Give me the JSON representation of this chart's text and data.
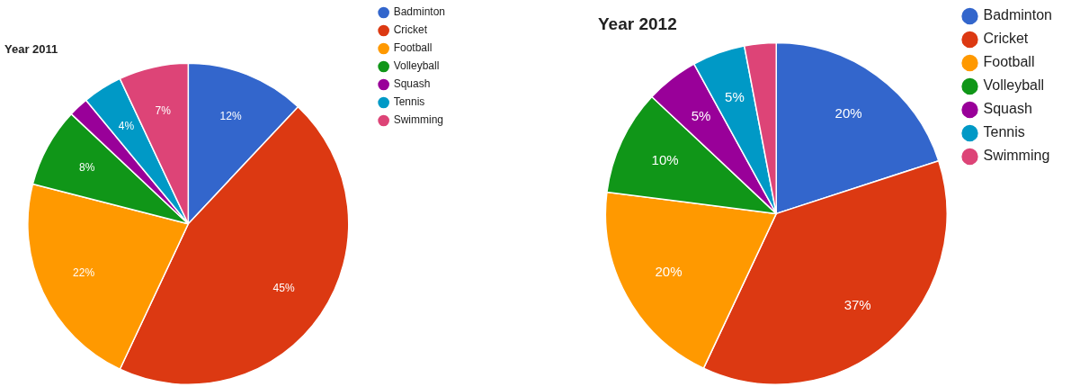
{
  "chart_data": [
    {
      "type": "pie",
      "title": "Year 2011",
      "categories": [
        "Badminton",
        "Cricket",
        "Football",
        "Volleyball",
        "Squash",
        "Tennis",
        "Swimming"
      ],
      "values": [
        12,
        45,
        22,
        8,
        2,
        4,
        7
      ],
      "colors": [
        "#3366cc",
        "#dc3912",
        "#ff9900",
        "#109618",
        "#990099",
        "#0099c6",
        "#dd4477"
      ],
      "value_labels": [
        "12%",
        "45%",
        "22%",
        "8%",
        null,
        "4%",
        "7%"
      ],
      "legend": "right"
    },
    {
      "type": "pie",
      "title": "Year 2012",
      "categories": [
        "Badminton",
        "Cricket",
        "Football",
        "Volleyball",
        "Squash",
        "Tennis",
        "Swimming"
      ],
      "values": [
        20,
        37,
        20,
        10,
        5,
        5,
        3
      ],
      "colors": [
        "#3366cc",
        "#dc3912",
        "#ff9900",
        "#109618",
        "#990099",
        "#0099c6",
        "#dd4477"
      ],
      "value_labels": [
        "20%",
        "37%",
        "20%",
        "10%",
        "5%",
        "5%",
        null
      ],
      "legend": "right"
    }
  ]
}
